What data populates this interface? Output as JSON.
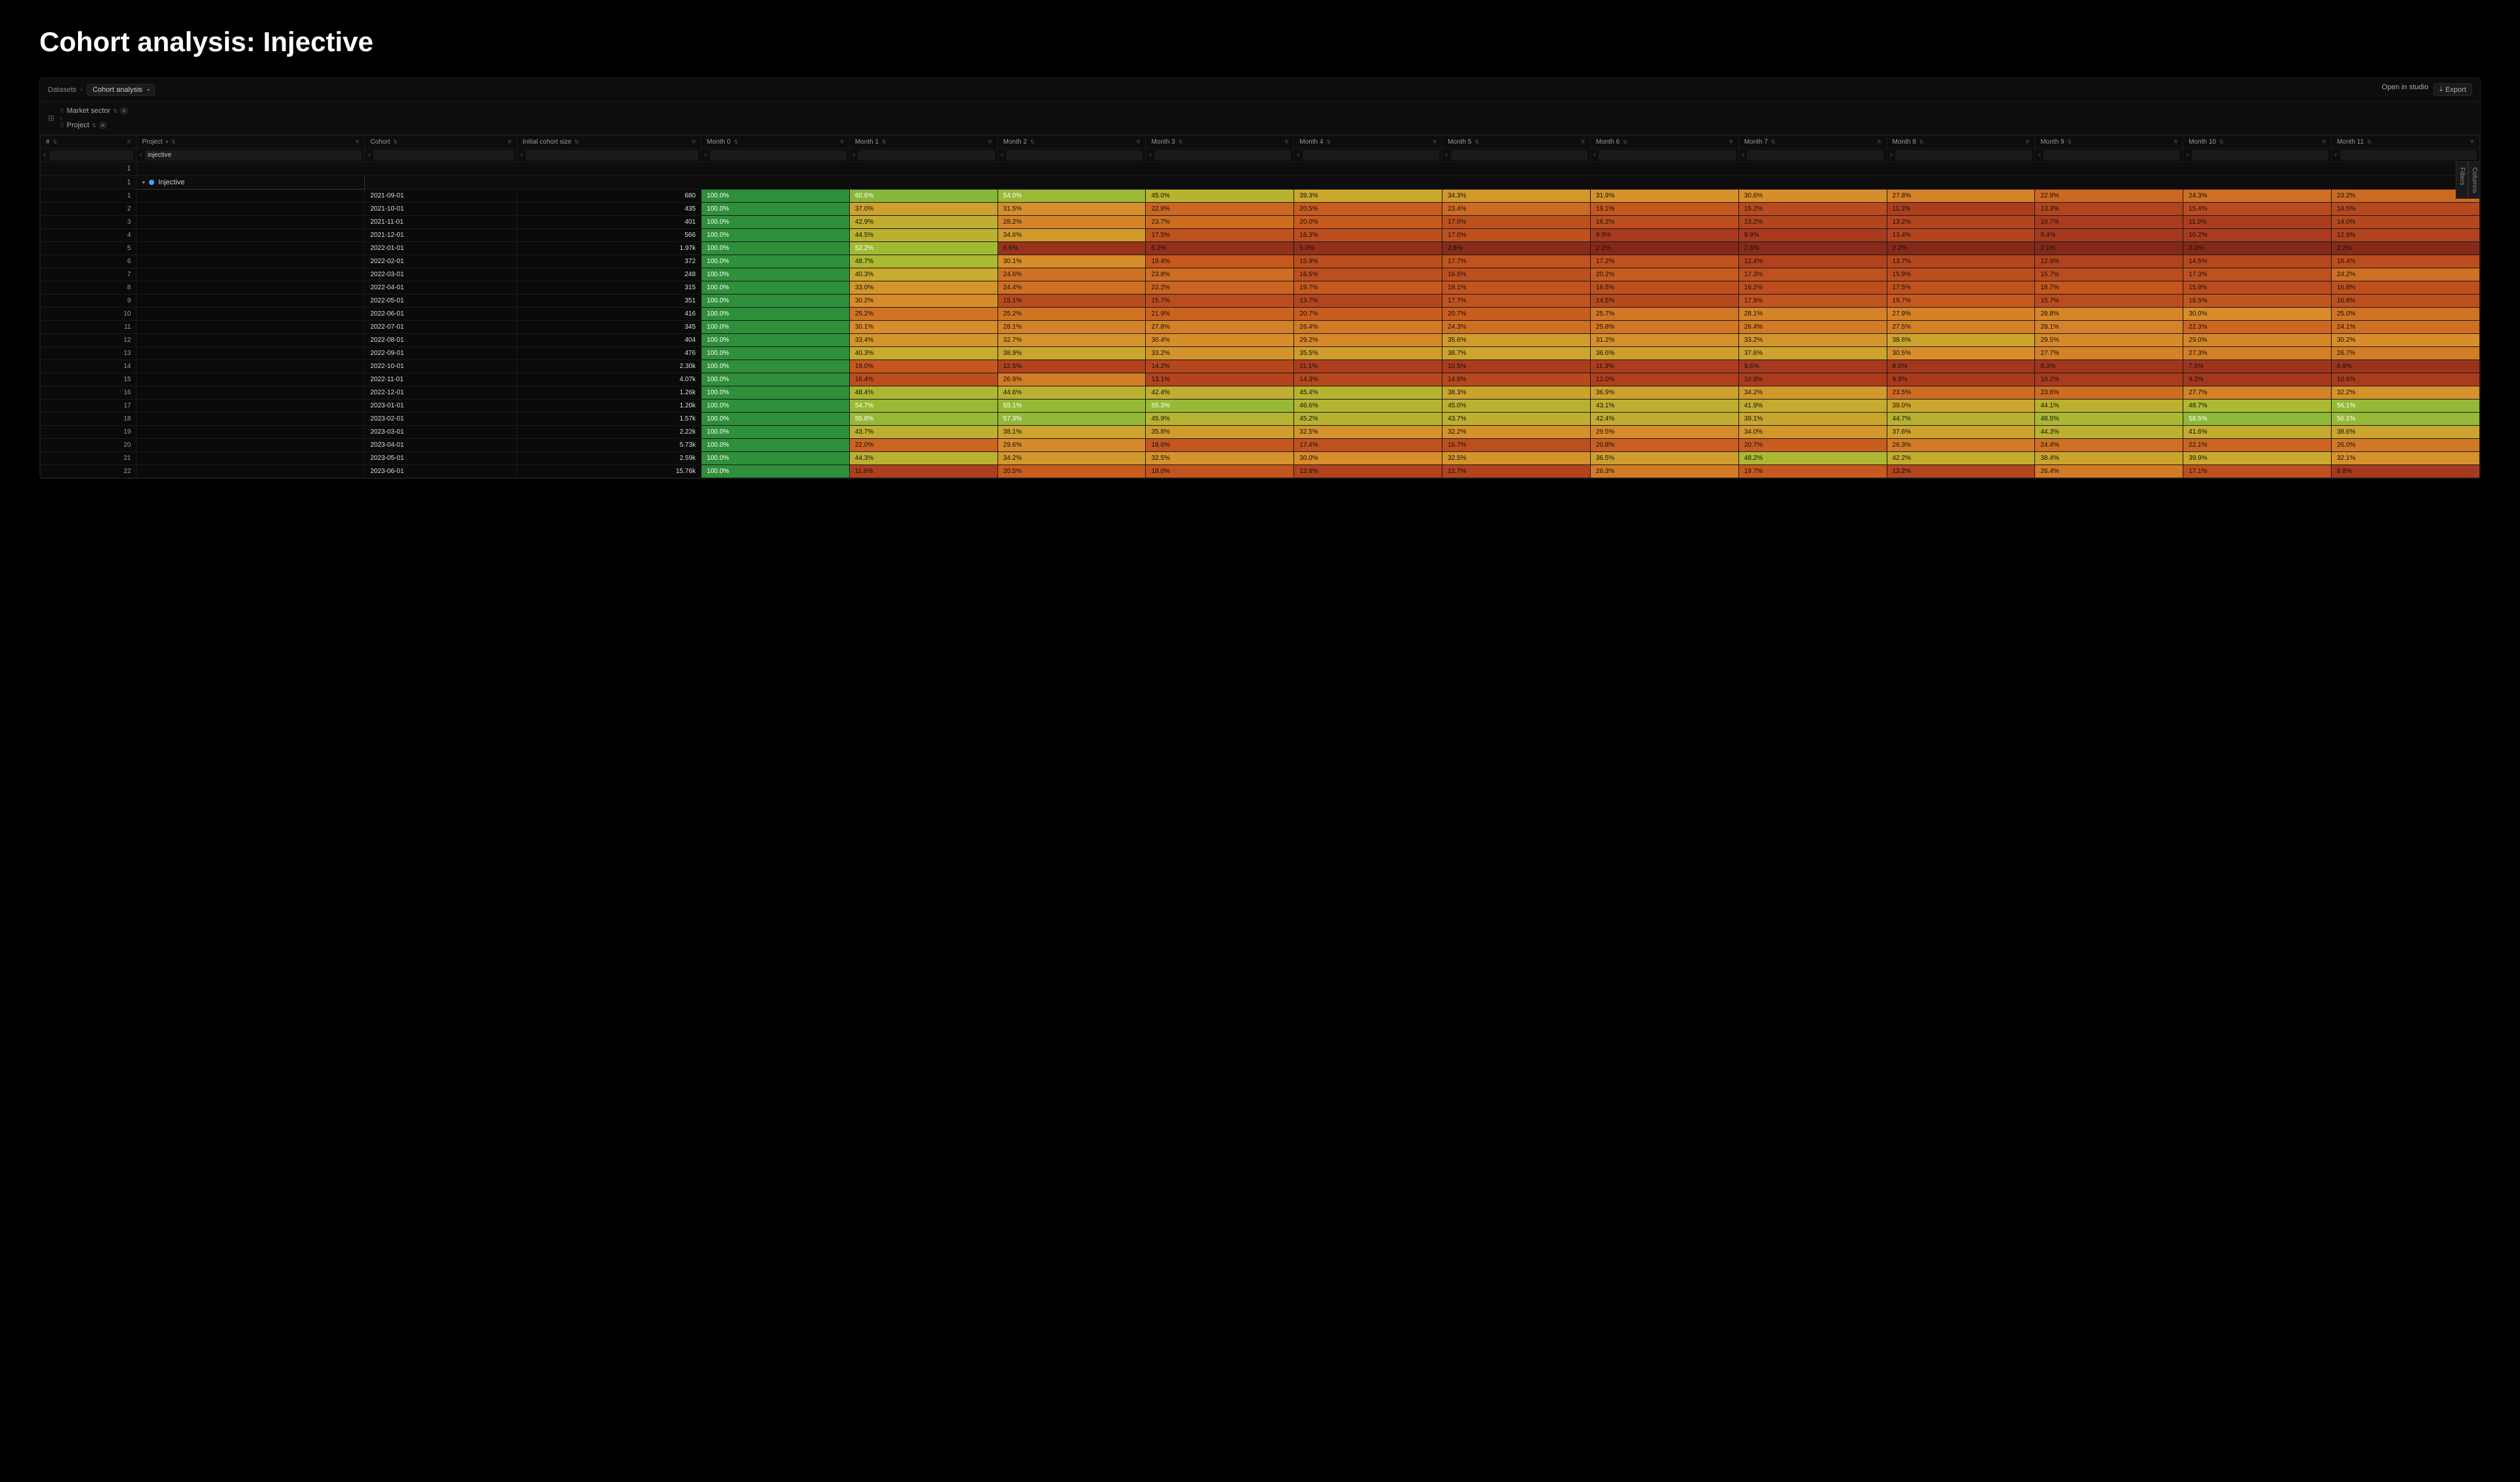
{
  "pageTitle": "Cohort analysis: Injective",
  "breadcrumb": {
    "root": "Datasets",
    "selector": "Cohort analysis"
  },
  "actions": {
    "open": "Open in studio",
    "export": "Export"
  },
  "chips": [
    {
      "label": "Market sector",
      "close": true
    },
    {
      "label": "Project",
      "close": true,
      "arrowBefore": true
    }
  ],
  "sidetabs": {
    "columns": "Columns",
    "filters": "Filters"
  },
  "headers": [
    "#",
    "Project",
    "Cohort",
    "Initial cohort size",
    "Month 0",
    "Month 1",
    "Month 2",
    "Month 3",
    "Month 4",
    "Month 5",
    "Month 6",
    "Month 7",
    "Month 8",
    "Month 9",
    "Month 10",
    "Month 11"
  ],
  "filterValue": "injective",
  "groupHeader": {
    "groupIndex": "1",
    "rowIndex": "1",
    "name": "Injective"
  },
  "colorScale": [
    {
      "t": 0.0,
      "c": "#7a2518"
    },
    {
      "t": 0.1,
      "c": "#a83a1e"
    },
    {
      "t": 0.2,
      "c": "#c85a1e"
    },
    {
      "t": 0.3,
      "c": "#d88c2a"
    },
    {
      "t": 0.4,
      "c": "#c9a92e"
    },
    {
      "t": 0.5,
      "c": "#a8bb33"
    },
    {
      "t": 0.65,
      "c": "#7ab53a"
    },
    {
      "t": 0.8,
      "c": "#4fa53e"
    },
    {
      "t": 1.0,
      "c": "#2f8f3a"
    }
  ],
  "rows": [
    {
      "i": 1,
      "cohort": "2021-09-01",
      "size": "680",
      "m": [
        100.0,
        60.6,
        54.0,
        45.0,
        39.3,
        34.3,
        31.9,
        30.6,
        27.8,
        22.9,
        24.3,
        23.2
      ]
    },
    {
      "i": 2,
      "cohort": "2021-10-01",
      "size": "435",
      "m": [
        100.0,
        37.0,
        31.5,
        22.8,
        20.5,
        23.4,
        19.1,
        15.2,
        11.3,
        13.3,
        15.4,
        14.5
      ]
    },
    {
      "i": 3,
      "cohort": "2021-11-01",
      "size": "401",
      "m": [
        100.0,
        42.9,
        28.2,
        23.7,
        20.0,
        17.0,
        16.2,
        13.2,
        13.2,
        10.7,
        11.0,
        14.0
      ]
    },
    {
      "i": 4,
      "cohort": "2021-12-01",
      "size": "566",
      "m": [
        100.0,
        44.5,
        34.6,
        17.5,
        16.3,
        17.0,
        9.9,
        9.9,
        13.4,
        9.4,
        10.2,
        12.9
      ]
    },
    {
      "i": 5,
      "cohort": "2022-01-01",
      "size": "1.97k",
      "m": [
        100.0,
        52.2,
        6.6,
        5.2,
        5.0,
        2.8,
        2.1,
        2.8,
        2.2,
        2.1,
        2.0,
        2.2
      ]
    },
    {
      "i": 6,
      "cohort": "2022-02-01",
      "size": "372",
      "m": [
        100.0,
        48.7,
        30.1,
        19.4,
        15.9,
        17.7,
        17.2,
        12.4,
        13.7,
        12.9,
        14.5,
        16.4
      ]
    },
    {
      "i": 7,
      "cohort": "2022-03-01",
      "size": "248",
      "m": [
        100.0,
        40.3,
        24.6,
        23.8,
        16.5,
        16.5,
        20.2,
        17.3,
        15.9,
        15.7,
        17.3,
        24.2
      ]
    },
    {
      "i": 8,
      "cohort": "2022-04-01",
      "size": "315",
      "m": [
        100.0,
        33.0,
        24.4,
        22.2,
        19.7,
        18.1,
        16.5,
        16.2,
        17.5,
        18.7,
        15.9,
        16.8
      ]
    },
    {
      "i": 9,
      "cohort": "2022-05-01",
      "size": "351",
      "m": [
        100.0,
        30.2,
        15.1,
        15.7,
        13.7,
        17.7,
        14.5,
        17.9,
        19.7,
        15.7,
        18.5,
        16.8
      ]
    },
    {
      "i": 10,
      "cohort": "2022-06-01",
      "size": "416",
      "m": [
        100.0,
        25.2,
        25.2,
        21.9,
        20.7,
        20.7,
        25.7,
        28.1,
        27.9,
        28.8,
        30.0,
        25.0
      ]
    },
    {
      "i": 11,
      "cohort": "2022-07-01",
      "size": "345",
      "m": [
        100.0,
        30.1,
        28.1,
        27.8,
        26.4,
        24.3,
        25.8,
        26.4,
        27.5,
        28.1,
        22.3,
        24.1
      ]
    },
    {
      "i": 12,
      "cohort": "2022-08-01",
      "size": "404",
      "m": [
        100.0,
        33.4,
        32.7,
        30.4,
        29.2,
        35.6,
        31.2,
        33.2,
        38.6,
        29.5,
        29.0,
        30.2
      ]
    },
    {
      "i": 13,
      "cohort": "2022-09-01",
      "size": "476",
      "m": [
        100.0,
        40.3,
        38.9,
        33.2,
        35.5,
        38.7,
        36.6,
        37.6,
        30.5,
        27.7,
        27.3,
        26.7
      ]
    },
    {
      "i": 14,
      "cohort": "2022-10-01",
      "size": "2.30k",
      "m": [
        100.0,
        19.0,
        12.5,
        14.2,
        11.1,
        10.5,
        11.3,
        9.6,
        8.6,
        8.3,
        7.5,
        6.9
      ]
    },
    {
      "i": 15,
      "cohort": "2022-11-01",
      "size": "4.07k",
      "m": [
        100.0,
        16.4,
        26.9,
        13.1,
        14.3,
        14.8,
        12.0,
        10.9,
        9.9,
        10.2,
        9.2,
        10.6
      ]
    },
    {
      "i": 16,
      "cohort": "2022-12-01",
      "size": "1.26k",
      "m": [
        100.0,
        48.4,
        44.6,
        42.4,
        45.4,
        38.3,
        36.9,
        34.2,
        23.5,
        23.6,
        27.7,
        32.2
      ]
    },
    {
      "i": 17,
      "cohort": "2023-01-01",
      "size": "1.20k",
      "m": [
        100.0,
        54.7,
        55.1,
        55.3,
        46.6,
        45.0,
        43.1,
        41.9,
        39.0,
        44.1,
        48.7,
        56.1
      ]
    },
    {
      "i": 18,
      "cohort": "2023-02-01",
      "size": "1.57k",
      "m": [
        100.0,
        55.8,
        57.3,
        45.9,
        45.2,
        43.7,
        42.4,
        39.1,
        44.7,
        48.5,
        58.5,
        56.1
      ]
    },
    {
      "i": 19,
      "cohort": "2023-03-01",
      "size": "2.22k",
      "m": [
        100.0,
        43.7,
        38.1,
        35.8,
        32.5,
        32.2,
        29.5,
        34.0,
        37.6,
        44.3,
        41.6,
        38.6
      ]
    },
    {
      "i": 20,
      "cohort": "2023-04-01",
      "size": "5.73k",
      "m": [
        100.0,
        22.0,
        29.6,
        18.6,
        17.4,
        16.7,
        20.8,
        20.7,
        26.3,
        24.4,
        22.1,
        26.0
      ]
    },
    {
      "i": 21,
      "cohort": "2023-05-01",
      "size": "2.59k",
      "m": [
        100.0,
        44.3,
        34.2,
        32.5,
        30.0,
        32.5,
        36.5,
        48.2,
        42.2,
        38.4,
        39.9,
        32.1
      ]
    },
    {
      "i": 22,
      "cohort": "2023-06-01",
      "size": "15.76k",
      "m": [
        100.0,
        11.6,
        20.5,
        18.0,
        12.8,
        12.7,
        26.3,
        19.7,
        13.2,
        26.4,
        17.1,
        9.8
      ]
    }
  ]
}
